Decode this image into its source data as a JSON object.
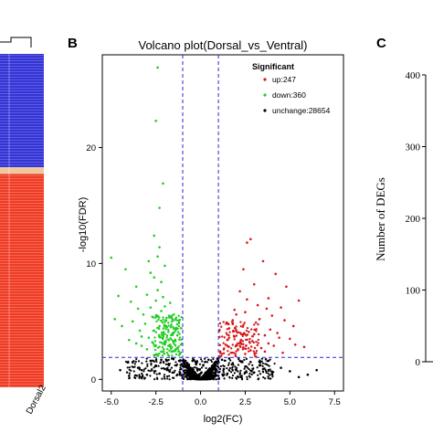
{
  "panels": {
    "b_label": "B",
    "c_label": "C",
    "heatmap_sample_label": "Dorsal2"
  },
  "chart_data": [
    {
      "type": "heatmap",
      "panel": "A",
      "xlabel": "",
      "ylabel": "",
      "columns": [
        "",
        "Dorsal2"
      ],
      "color_low": "#3b3bd6",
      "color_mid": "#f0c8a0",
      "color_high": "#ee3a2a",
      "blocks": [
        {
          "from": 0.0,
          "to": 0.34,
          "value": "low"
        },
        {
          "from": 0.34,
          "to": 0.36,
          "value": "mid"
        },
        {
          "from": 0.36,
          "to": 1.0,
          "value": "high"
        }
      ]
    },
    {
      "type": "scatter",
      "panel": "B",
      "title": "Volcano plot(Dorsal_vs_Ventral)",
      "xlabel": "log2(FC)",
      "ylabel": "-log10(FDR)",
      "xlim": [
        -5.5,
        8.0
      ],
      "ylim": [
        -1,
        28
      ],
      "xticks": [
        "-5.0",
        "-2.5",
        "0.0",
        "2.5",
        "5.0",
        "7.5"
      ],
      "xtick_values": [
        -5.0,
        -2.5,
        0.0,
        2.5,
        5.0,
        7.5
      ],
      "yticks": [
        "0",
        "10",
        "20"
      ],
      "ytick_values": [
        0,
        10,
        20
      ],
      "thresholds": {
        "x": [
          -1,
          1
        ],
        "y": 1.9
      },
      "legend": {
        "title": "Significant",
        "placement": "top-right",
        "items": [
          {
            "name": "up:247",
            "color": "#d7191c"
          },
          {
            "name": "down:360",
            "color": "#22cc22"
          },
          {
            "name": "unchange:28654",
            "color": "#000000"
          }
        ]
      },
      "series": [
        {
          "name": "up",
          "color": "#d7191c",
          "points": [
            [
              1.2,
              2.2
            ],
            [
              1.5,
              3.4
            ],
            [
              1.8,
              5.1
            ],
            [
              2.0,
              4.2
            ],
            [
              2.2,
              7.6
            ],
            [
              2.4,
              9.5
            ],
            [
              2.6,
              11.8
            ],
            [
              2.8,
              12.1
            ],
            [
              3.0,
              8.2
            ],
            [
              3.2,
              6.4
            ],
            [
              3.5,
              10.2
            ],
            [
              3.8,
              7.0
            ],
            [
              4.0,
              5.5
            ],
            [
              4.2,
              9.1
            ],
            [
              4.5,
              6.2
            ],
            [
              4.8,
              8.0
            ],
            [
              5.0,
              3.5
            ],
            [
              5.2,
              4.6
            ],
            [
              5.5,
              6.8
            ],
            [
              5.8,
              2.8
            ],
            [
              1.4,
              3.0
            ],
            [
              1.6,
              4.4
            ],
            [
              1.9,
              6.0
            ],
            [
              2.1,
              2.6
            ],
            [
              2.3,
              3.9
            ],
            [
              2.5,
              5.8
            ],
            [
              2.7,
              4.1
            ],
            [
              2.9,
              3.3
            ],
            [
              3.1,
              4.9
            ],
            [
              3.4,
              2.7
            ],
            [
              3.6,
              3.8
            ],
            [
              3.9,
              4.3
            ],
            [
              4.1,
              2.9
            ],
            [
              4.4,
              3.6
            ],
            [
              1.3,
              2.6
            ],
            [
              1.7,
              2.3
            ],
            [
              2.0,
              5.6
            ],
            [
              2.2,
              3.1
            ],
            [
              2.6,
              6.9
            ],
            [
              3.3,
              5.2
            ],
            [
              3.7,
              6.1
            ],
            [
              4.3,
              4.0
            ],
            [
              4.7,
              5.1
            ],
            [
              1.1,
              2.4
            ],
            [
              1.5,
              2.9
            ],
            [
              1.9,
              3.7
            ],
            [
              2.4,
              4.7
            ],
            [
              2.8,
              2.5
            ],
            [
              3.0,
              3.9
            ],
            [
              3.6,
              2.4
            ],
            [
              1.6,
              3.6
            ],
            [
              2.5,
              2.2
            ],
            [
              3.8,
              3.1
            ],
            [
              4.6,
              2.3
            ],
            [
              5.3,
              3.0
            ]
          ]
        },
        {
          "name": "down",
          "color": "#22cc22",
          "points": [
            [
              -1.2,
              2.1
            ],
            [
              -1.4,
              3.3
            ],
            [
              -1.6,
              5.0
            ],
            [
              -1.8,
              4.1
            ],
            [
              -2.0,
              6.3
            ],
            [
              -2.2,
              8.4
            ],
            [
              -2.4,
              10.6
            ],
            [
              -2.6,
              12.4
            ],
            [
              -2.8,
              9.2
            ],
            [
              -3.0,
              7.3
            ],
            [
              -3.2,
              5.6
            ],
            [
              -3.4,
              4.2
            ],
            [
              -3.6,
              3.1
            ],
            [
              -2.3,
              14.8
            ],
            [
              -2.1,
              16.9
            ],
            [
              -2.5,
              22.3
            ],
            [
              -2.4,
              26.9
            ],
            [
              -4.2,
              9.5
            ],
            [
              -4.6,
              7.2
            ],
            [
              -5.0,
              10.5
            ],
            [
              -1.3,
              2.7
            ],
            [
              -1.5,
              4.0
            ],
            [
              -1.7,
              3.0
            ],
            [
              -1.9,
              5.3
            ],
            [
              -2.1,
              3.8
            ],
            [
              -2.3,
              4.6
            ],
            [
              -2.5,
              6.8
            ],
            [
              -2.7,
              5.4
            ],
            [
              -2.9,
              3.6
            ],
            [
              -3.1,
              4.8
            ],
            [
              -3.3,
              2.9
            ],
            [
              -3.5,
              6.1
            ],
            [
              -3.8,
              5.0
            ],
            [
              -4.0,
              3.4
            ],
            [
              -1.6,
              2.4
            ],
            [
              -1.8,
              2.9
            ],
            [
              -2.0,
              3.1
            ],
            [
              -2.2,
              5.9
            ],
            [
              -2.4,
              7.7
            ],
            [
              -2.6,
              8.8
            ],
            [
              -2.8,
              6.2
            ],
            [
              -3.0,
              2.6
            ],
            [
              -1.1,
              2.3
            ],
            [
              -1.4,
              2.5
            ],
            [
              -1.9,
              4.5
            ],
            [
              -2.2,
              2.4
            ],
            [
              -2.7,
              3.2
            ],
            [
              -3.3,
              3.7
            ],
            [
              -4.4,
              4.6
            ],
            [
              -1.7,
              6.6
            ],
            [
              -2.0,
              9.8
            ],
            [
              -2.3,
              11.4
            ],
            [
              -1.5,
              5.6
            ],
            [
              -2.9,
              10.2
            ],
            [
              -3.6,
              8.0
            ],
            [
              -2.6,
              4.2
            ],
            [
              -1.3,
              3.8
            ],
            [
              -2.1,
              7.1
            ],
            [
              -3.9,
              6.7
            ],
            [
              -4.8,
              5.2
            ]
          ]
        },
        {
          "name": "unchange",
          "color": "#000000",
          "points": [
            [
              -0.1,
              0.1
            ],
            [
              0.1,
              0.2
            ],
            [
              -0.3,
              0.3
            ],
            [
              0.3,
              0.4
            ],
            [
              -0.5,
              0.6
            ],
            [
              0.5,
              0.7
            ],
            [
              -0.7,
              1.0
            ],
            [
              0.7,
              1.1
            ],
            [
              -0.9,
              1.4
            ],
            [
              0.9,
              1.5
            ],
            [
              0.2,
              0.05
            ],
            [
              -0.2,
              0.15
            ],
            [
              0.4,
              0.35
            ],
            [
              -0.4,
              0.45
            ],
            [
              0.6,
              0.9
            ],
            [
              -0.6,
              0.8
            ],
            [
              0.8,
              1.3
            ],
            [
              -0.8,
              1.2
            ],
            [
              0.0,
              0.5
            ],
            [
              -0.15,
              0.9
            ],
            [
              0.15,
              1.2
            ],
            [
              -1.5,
              0.6
            ],
            [
              1.5,
              0.5
            ],
            [
              -2.0,
              0.9
            ],
            [
              2.0,
              0.8
            ],
            [
              -2.5,
              1.2
            ],
            [
              2.5,
              1.1
            ],
            [
              -3.0,
              0.4
            ],
            [
              3.0,
              0.6
            ],
            [
              -3.5,
              1.0
            ],
            [
              3.5,
              0.9
            ],
            [
              -4.0,
              0.3
            ],
            [
              4.0,
              0.5
            ],
            [
              5.0,
              0.7
            ],
            [
              6.0,
              0.4
            ],
            [
              -1.2,
              1.6
            ],
            [
              1.2,
              1.7
            ],
            [
              -1.8,
              1.3
            ],
            [
              1.8,
              1.4
            ],
            [
              -2.3,
              0.5
            ],
            [
              2.3,
              0.3
            ],
            [
              -2.8,
              1.6
            ],
            [
              2.8,
              1.5
            ],
            [
              -3.3,
              0.8
            ],
            [
              3.3,
              1.2
            ],
            [
              4.5,
              1.0
            ],
            [
              -4.5,
              0.8
            ],
            [
              5.5,
              0.2
            ],
            [
              -1.0,
              0.2
            ],
            [
              1.0,
              0.3
            ],
            [
              -1.6,
              1.8
            ],
            [
              1.6,
              1.8
            ],
            [
              -0.95,
              1.7
            ],
            [
              0.95,
              1.8
            ],
            [
              -1.3,
              0.4
            ],
            [
              1.3,
              0.9
            ],
            [
              2.2,
              1.6
            ],
            [
              -2.2,
              1.7
            ],
            [
              3.8,
              1.6
            ],
            [
              -3.8,
              1.5
            ],
            [
              6.5,
              0.8
            ],
            [
              -0.05,
              0.3
            ],
            [
              0.05,
              0.6
            ],
            [
              -0.25,
              1.3
            ],
            [
              0.25,
              1.5
            ],
            [
              -0.45,
              1.6
            ],
            [
              0.45,
              1.7
            ]
          ]
        }
      ]
    },
    {
      "type": "bar",
      "panel": "C",
      "xlabel": "",
      "ylabel": "Number of DEGs",
      "ylim": [
        0,
        400
      ],
      "yticks": [
        "0",
        "100",
        "200",
        "300",
        "400"
      ],
      "ytick_values": [
        0,
        100,
        200,
        300,
        400
      ],
      "categories": [],
      "values": []
    }
  ]
}
